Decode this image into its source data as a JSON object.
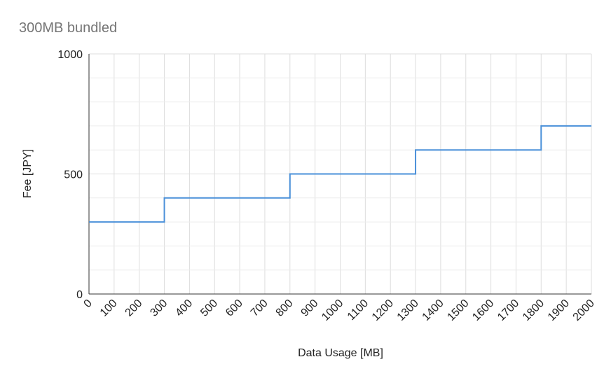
{
  "chart_data": {
    "type": "line",
    "interpolation": "step-after",
    "title": "300MB bundled",
    "xlabel": "Data Usage [MB]",
    "ylabel": "Fee [JPY]",
    "xlim": [
      0,
      2000
    ],
    "ylim": [
      0,
      1000
    ],
    "x_ticks": [
      0,
      100,
      200,
      300,
      400,
      500,
      600,
      700,
      800,
      900,
      1000,
      1100,
      1200,
      1300,
      1400,
      1500,
      1600,
      1700,
      1800,
      1900,
      2000
    ],
    "y_ticks": [
      0,
      500,
      1000
    ],
    "y_minor_ticks": [
      100,
      200,
      300,
      400,
      600,
      700,
      800,
      900
    ],
    "grid": true,
    "legend": "none",
    "series": [
      {
        "color": "#4a90d9",
        "points": [
          {
            "x": 0,
            "y": 300
          },
          {
            "x": 300,
            "y": 400
          },
          {
            "x": 800,
            "y": 500
          },
          {
            "x": 1300,
            "y": 600
          },
          {
            "x": 1800,
            "y": 700
          },
          {
            "x": 2000,
            "y": 700
          }
        ]
      }
    ]
  }
}
